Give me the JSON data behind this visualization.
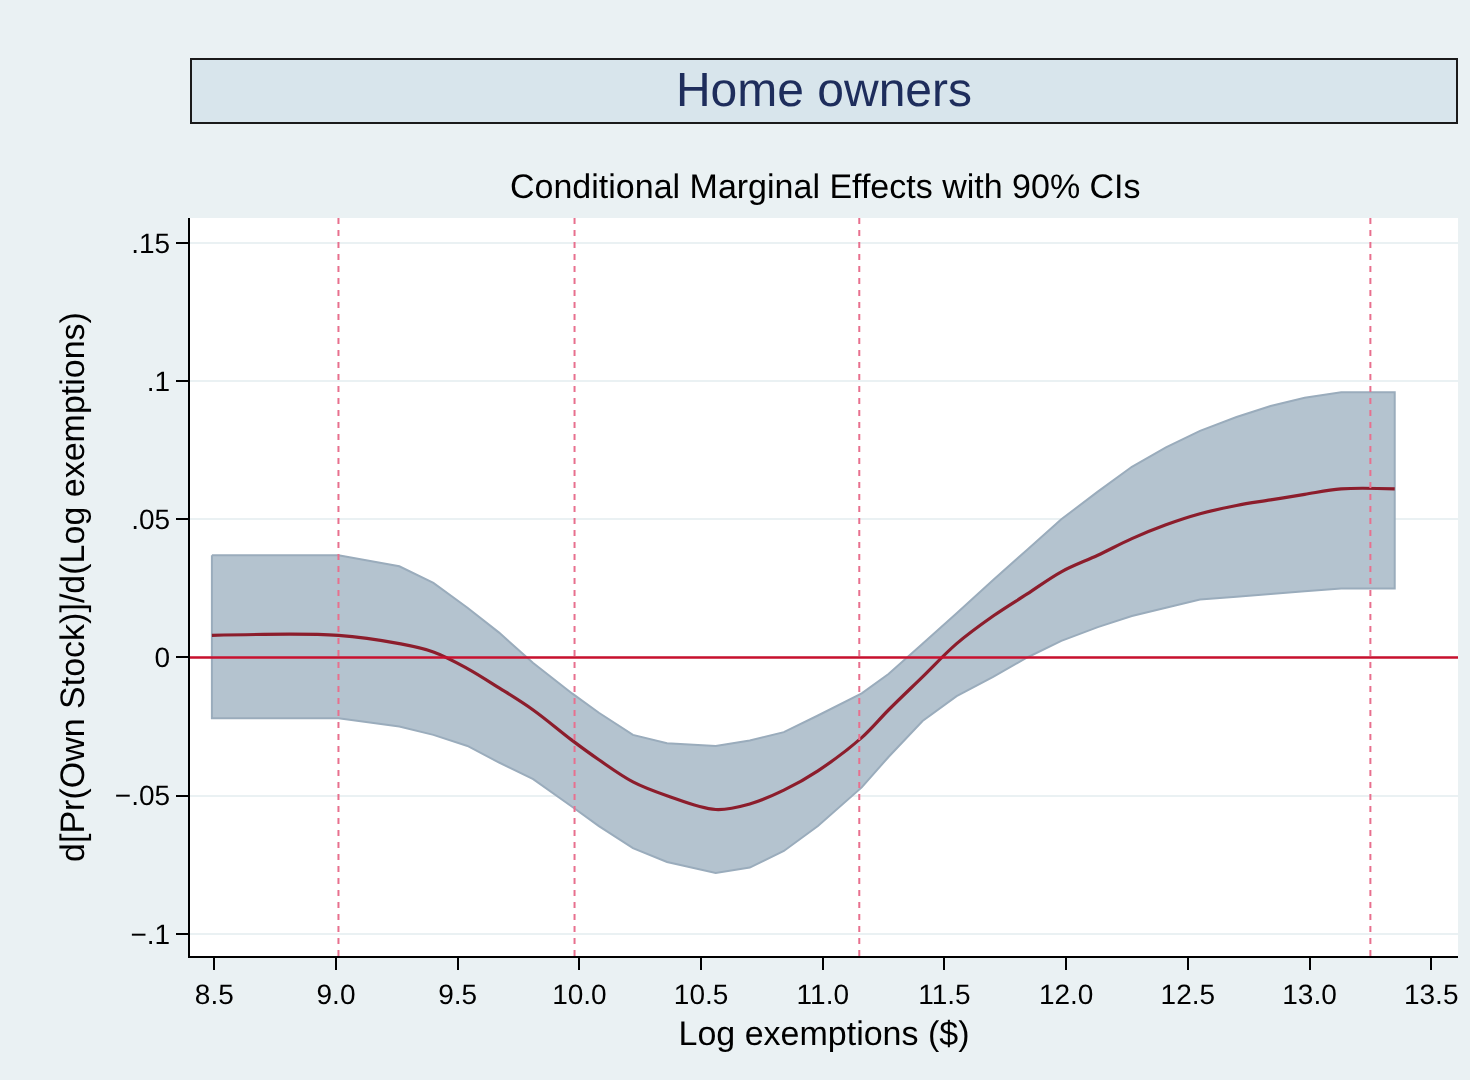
{
  "chart_data": {
    "type": "line",
    "title": "Home owners",
    "subtitle": "Conditional Marginal Effects with 90% CIs",
    "xlabel": "Log exemptions ($)",
    "ylabel": "d[Pr(Own Stock)]/d(Log exemptions)",
    "x": [
      8.49,
      9.01,
      9.26,
      9.4,
      9.54,
      9.67,
      9.81,
      9.97,
      10.08,
      10.22,
      10.36,
      10.56,
      10.7,
      10.84,
      10.98,
      11.16,
      11.27,
      11.41,
      11.55,
      11.7,
      11.84,
      11.98,
      12.13,
      12.27,
      12.41,
      12.55,
      12.7,
      12.84,
      12.98,
      13.13,
      13.35
    ],
    "series": [
      {
        "color": "#8c1d2c",
        "values": [
          0.008,
          0.008,
          0.005,
          0.002,
          -0.004,
          -0.011,
          -0.019,
          -0.03,
          -0.037,
          -0.045,
          -0.05,
          -0.055,
          -0.053,
          -0.048,
          -0.041,
          -0.029,
          -0.019,
          -0.007,
          0.005,
          0.015,
          0.023,
          0.031,
          0.037,
          0.043,
          0.048,
          0.052,
          0.055,
          0.057,
          0.059,
          0.061,
          0.061
        ],
        "upper": [
          0.037,
          0.037,
          0.033,
          0.027,
          0.018,
          0.009,
          -0.002,
          -0.013,
          -0.02,
          -0.028,
          -0.031,
          -0.032,
          -0.03,
          -0.027,
          -0.021,
          -0.013,
          -0.006,
          0.005,
          0.016,
          0.028,
          0.039,
          0.05,
          0.06,
          0.069,
          0.076,
          0.082,
          0.087,
          0.091,
          0.094,
          0.096,
          0.096
        ],
        "lower": [
          -0.022,
          -0.022,
          -0.025,
          -0.028,
          -0.032,
          -0.038,
          -0.044,
          -0.054,
          -0.061,
          -0.069,
          -0.074,
          -0.078,
          -0.076,
          -0.07,
          -0.061,
          -0.047,
          -0.036,
          -0.023,
          -0.014,
          -0.007,
          0.0,
          0.006,
          0.011,
          0.015,
          0.018,
          0.021,
          0.022,
          0.023,
          0.024,
          0.025,
          0.025
        ]
      }
    ],
    "xlim": [
      8.4,
      13.61
    ],
    "ylim": [
      -0.108,
      0.159
    ],
    "xticks": [
      8.5,
      {
        "value": 9,
        "label": "9.0"
      },
      9.5,
      {
        "value": 10,
        "label": "10.0"
      },
      10.5,
      {
        "value": 11,
        "label": "11.0"
      },
      11.5,
      {
        "value": 12,
        "label": "12.0"
      },
      12.5,
      {
        "value": 13,
        "label": "13.0"
      },
      13.5
    ],
    "yticks": [
      {
        "value": -0.1,
        "label": "−.1"
      },
      {
        "value": -0.05,
        "label": "−.05"
      },
      0,
      {
        "value": 0.05,
        "label": ".05"
      },
      {
        "value": 0.1,
        "label": ".1"
      },
      {
        "value": 0.15,
        "label": ".15"
      }
    ],
    "ref_lines": [
      {
        "axis": "y",
        "value": 0,
        "color": "#c8102e",
        "line_style": "solid"
      },
      {
        "axis": "x",
        "value": 9.01,
        "color": "#e8708e",
        "line_style": "dotted"
      },
      {
        "axis": "x",
        "value": 9.98,
        "color": "#e8708e",
        "line_style": "dotted"
      },
      {
        "axis": "x",
        "value": 11.15,
        "color": "#e8708e",
        "line_style": "dotted"
      },
      {
        "axis": "x",
        "value": 13.25,
        "color": "#e8708e",
        "line_style": "dotted"
      }
    ],
    "grid": "y",
    "marker": "none",
    "line_style": "solid"
  }
}
